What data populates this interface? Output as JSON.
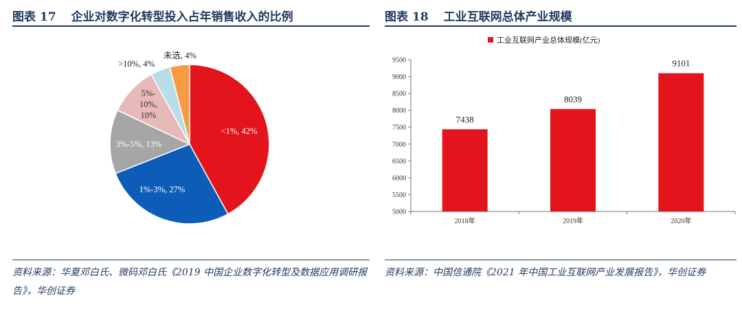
{
  "colors": {
    "title": "#1f3a5f",
    "bar": "#e3141b"
  },
  "left": {
    "title_label": "图表 17",
    "title_text": "企业对数字化转型投入占年销售收入的比例",
    "source_text": "资料来源：华夏邓白氏、微码邓白氏《2019 中国企业数字化转型及数据应用调研报告》，华创证券"
  },
  "right": {
    "title_label": "图表 18",
    "title_text": "工业互联网总体产业规模",
    "source_text": "资料来源：中国信通院《2021 年中国工业互联网产业发展报告》，华创证券"
  },
  "chart_data": [
    {
      "type": "pie",
      "slices": [
        {
          "label": "<1%",
          "value": 42,
          "text": "<1%, 42%",
          "color": "#e3141b"
        },
        {
          "label": "1%-3%",
          "value": 27,
          "text": "1%-3%, 27%",
          "color": "#0d5db8"
        },
        {
          "label": "3%-5%",
          "value": 13,
          "text": "3%-5%, 13%",
          "color": "#a6a6a6"
        },
        {
          "label": "5%-10%",
          "value": 10,
          "lines": [
            "5%-",
            "10%,",
            "10%"
          ],
          "color": "#e8b9b9"
        },
        {
          "label": ">10%",
          "value": 4,
          "text": ">10%, 4%",
          "color": "#b7dde8"
        },
        {
          "label": "未选",
          "value": 4,
          "text": "未选, 4%",
          "color": "#f79a46"
        }
      ]
    },
    {
      "type": "bar",
      "legend": "工业互联网产业总体规模(亿元)",
      "legend_position": "top",
      "categories": [
        "2018年",
        "2019年",
        "2020年"
      ],
      "values": [
        7438,
        8039,
        9101
      ],
      "ylim": [
        5000,
        9500
      ],
      "yticks": [
        5000,
        5500,
        6000,
        6500,
        7000,
        7500,
        8000,
        8500,
        9000,
        9500
      ],
      "grid": false
    }
  ]
}
